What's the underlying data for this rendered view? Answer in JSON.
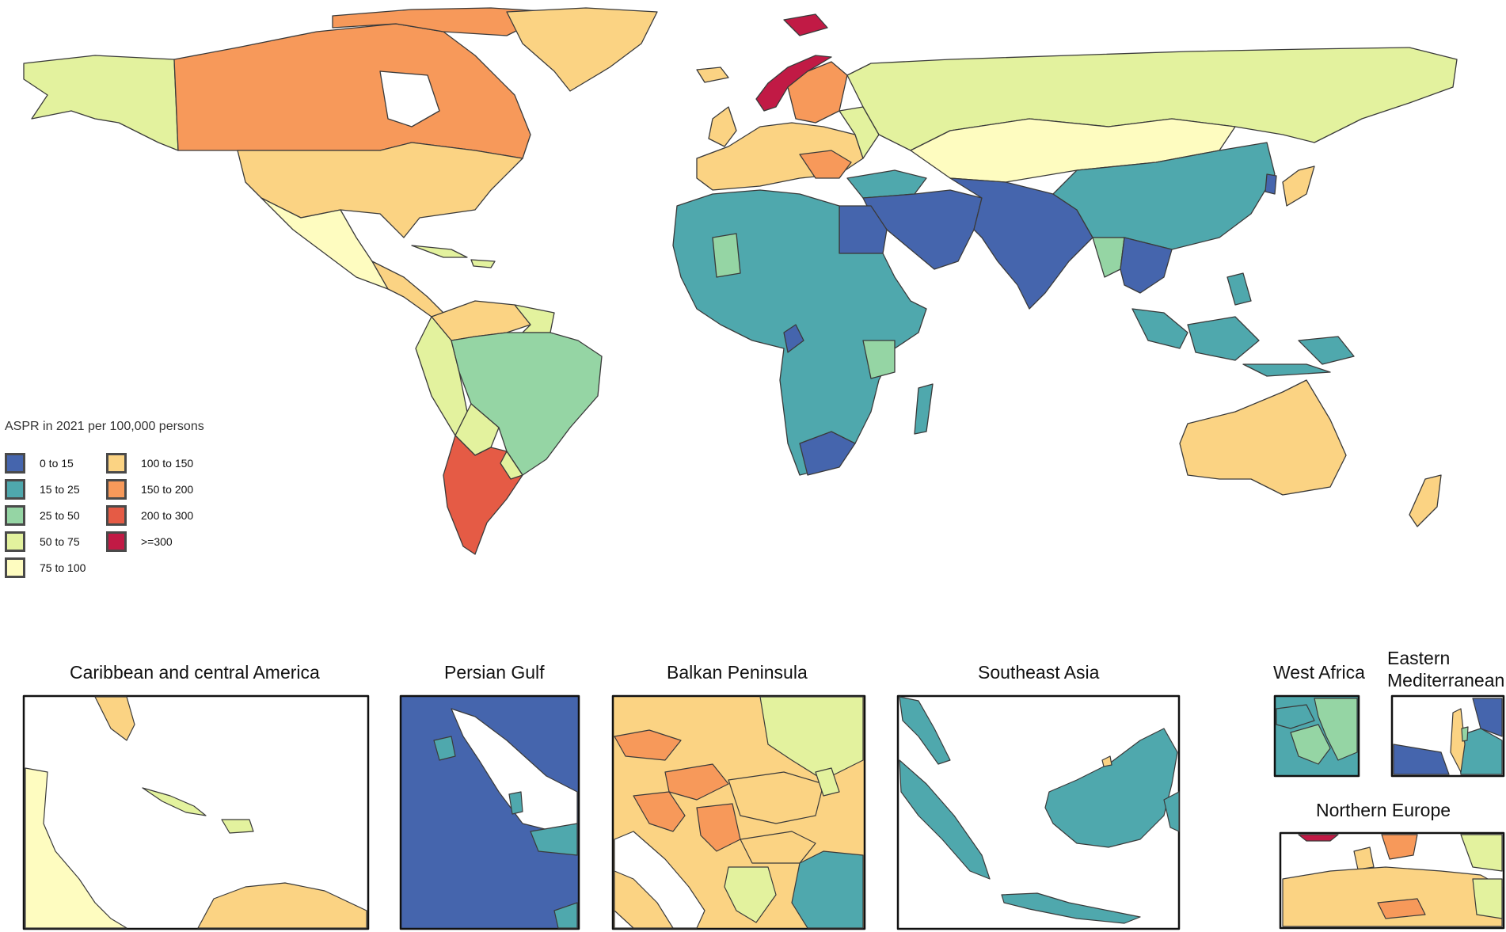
{
  "legend": {
    "title": "ASPR in 2021 per 100,000 persons",
    "items": [
      {
        "label": "0 to 15",
        "color": "#4565ad"
      },
      {
        "label": "15 to 25",
        "color": "#4fa8ad"
      },
      {
        "label": "25 to 50",
        "color": "#95d5a4"
      },
      {
        "label": "50 to 75",
        "color": "#e3f29e"
      },
      {
        "label": "75 to 100",
        "color": "#fefcc0"
      },
      {
        "label": "100 to 150",
        "color": "#fbd383"
      },
      {
        "label": "150 to 200",
        "color": "#f7995a"
      },
      {
        "label": "200 to 300",
        "color": "#e55b45"
      },
      {
        "label": ">=300",
        "color": "#c11a45"
      }
    ]
  },
  "insets": [
    {
      "title": "Caribbean and central America"
    },
    {
      "title": "Persian Gulf"
    },
    {
      "title": "Balkan Peninsula"
    },
    {
      "title": "Southeast Asia"
    },
    {
      "title": "West Africa"
    },
    {
      "title": "Eastern"
    },
    {
      "title": "Mediterranean"
    },
    {
      "title": "Northern Europe"
    }
  ]
}
